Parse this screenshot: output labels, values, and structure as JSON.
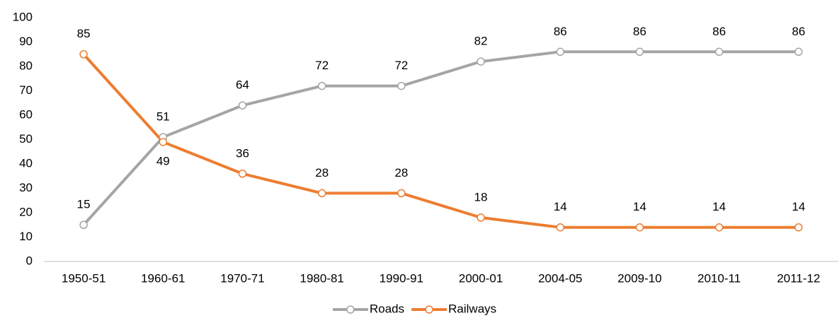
{
  "chart_data": {
    "type": "line",
    "categories": [
      "1950-51",
      "1960-61",
      "1970-71",
      "1980-81",
      "1990-91",
      "2000-01",
      "2004-05",
      "2009-10",
      "2010-11",
      "2011-12"
    ],
    "series": [
      {
        "name": "Roads",
        "color": "#a5a5a5",
        "values": [
          15,
          51,
          64,
          72,
          72,
          82,
          86,
          86,
          86,
          86
        ]
      },
      {
        "name": "Railways",
        "color": "#ed7d31",
        "values": [
          85,
          49,
          36,
          28,
          28,
          18,
          14,
          14,
          14,
          14
        ]
      }
    ],
    "ylim": [
      0,
      100
    ],
    "yticks": [
      0,
      10,
      20,
      30,
      40,
      50,
      60,
      70,
      80,
      90,
      100
    ],
    "grid": false,
    "legend": "bottom"
  }
}
